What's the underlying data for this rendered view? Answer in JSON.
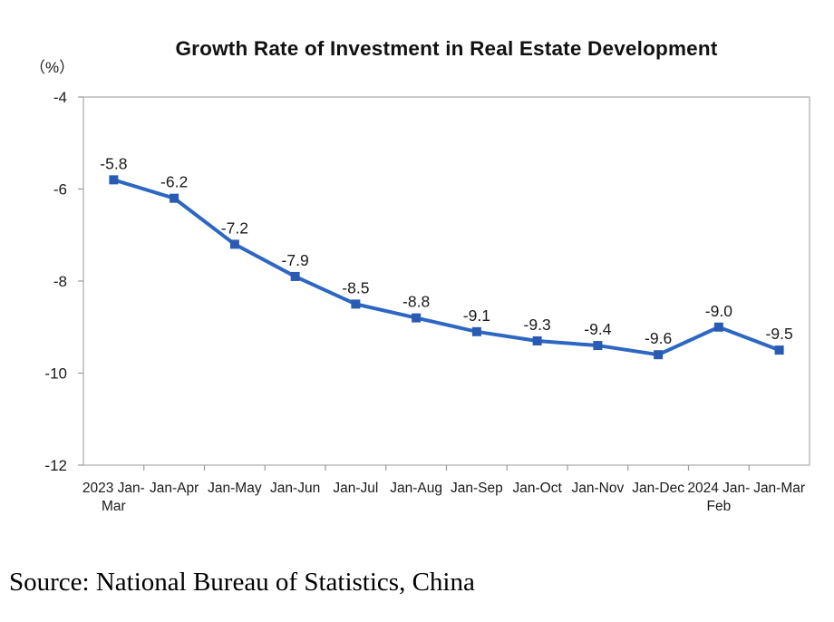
{
  "chart": {
    "title": "Growth Rate of Investment in Real Estate Development",
    "unit_label": "（%）"
  },
  "footer": {
    "source_text": "Source: National Bureau of Statistics, China"
  },
  "colors": {
    "line": "#2c67c2",
    "marker": "#2a5bb2",
    "text": "#1a1a1a",
    "axis_tick": "#9b9b9b",
    "plot_border": "#bcbcbc"
  },
  "chart_data": {
    "type": "line",
    "title": "Growth Rate of Investment in Real Estate Development",
    "unit": "（%）",
    "categories": [
      "2023 Jan-Mar",
      "Jan-Apr",
      "Jan-May",
      "Jan-Jun",
      "Jan-Jul",
      "Jan-Aug",
      "Jan-Sep",
      "Jan-Oct",
      "Jan-Nov",
      "Jan-Dec",
      "2024 Jan-Feb",
      "Jan-Mar"
    ],
    "category_lines": [
      [
        "2023 Jan-",
        "Mar"
      ],
      [
        "Jan-Apr"
      ],
      [
        "Jan-May"
      ],
      [
        "Jan-Jun"
      ],
      [
        "Jan-Jul"
      ],
      [
        "Jan-Aug"
      ],
      [
        "Jan-Sep"
      ],
      [
        "Jan-Oct"
      ],
      [
        "Jan-Nov"
      ],
      [
        "Jan-Dec"
      ],
      [
        "2024 Jan-",
        "Feb"
      ],
      [
        "Jan-Mar"
      ]
    ],
    "values": [
      -5.8,
      -6.2,
      -7.2,
      -7.9,
      -8.5,
      -8.8,
      -9.1,
      -9.3,
      -9.4,
      -9.6,
      -9.0,
      -9.5
    ],
    "data_labels": [
      "-5.8",
      "-6.2",
      "-7.2",
      "-7.9",
      "-8.5",
      "-8.8",
      "-9.1",
      "-9.3",
      "-9.4",
      "-9.6",
      "-9.0",
      "-9.5"
    ],
    "y_ticks": [
      -4,
      -6,
      -8,
      -10,
      -12
    ],
    "y_tick_labels": [
      "-4",
      "-6",
      "-8",
      "-10",
      "-12"
    ],
    "ylim": [
      -12,
      -4
    ],
    "xlabel": "",
    "ylabel": "（%）",
    "grid": false,
    "legend": "none",
    "marker_style": "square",
    "source": "Source: National Bureau of Statistics, China"
  }
}
